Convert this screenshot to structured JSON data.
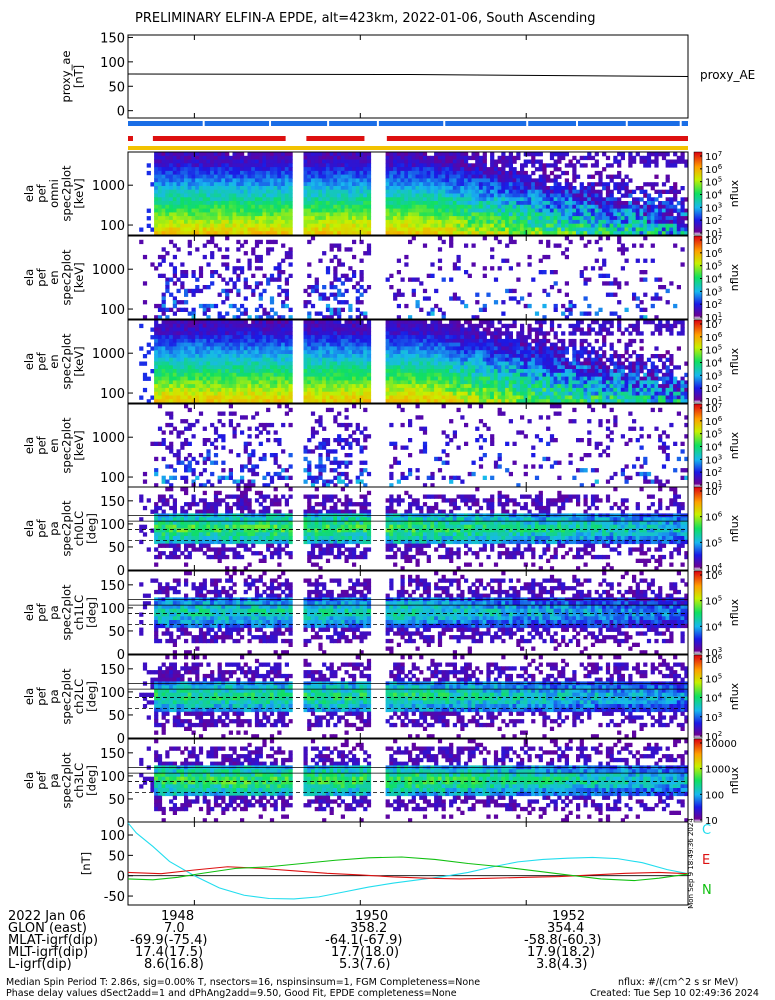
{
  "title": "PRELIMINARY ELFIN-A EPDE, alt=423km, 2022-01-06, South Ascending",
  "chart_data": [
    {
      "type": "line",
      "panel": "proxy_ae",
      "ylabel_lines": [
        "proxy_ae",
        "[nT]"
      ],
      "legend": "proxy_AE",
      "yticks": [
        "150",
        "100",
        "50",
        "0"
      ],
      "ylim": [
        -15,
        155
      ],
      "xlim": [
        1947.2,
        1953.95
      ],
      "series": [
        {
          "x": [
            1947.2,
            1950.6,
            1953.95
          ],
          "y": [
            75,
            74,
            70
          ]
        }
      ]
    },
    {
      "type": "heatmap",
      "panel": "omni_energy",
      "ylabel_lines": [
        "ela",
        "pef",
        "omni",
        "spec2plot",
        "[keV]"
      ],
      "yticks": [
        "1000",
        "100"
      ],
      "zlabel": "nflux",
      "zticks": [
        "10^7",
        "10^6",
        "10^5",
        "10^4",
        "10^3",
        "10^2",
        "10^1"
      ],
      "log_y": true,
      "ylim": [
        55,
        7000
      ]
    },
    {
      "type": "heatmap",
      "panel": "pa_energy_1",
      "ylabel_lines": [
        "ela",
        "pef",
        "en",
        "spec2plot",
        "[keV]"
      ],
      "yticks": [
        "1000",
        "100"
      ],
      "zlabel": "nflux",
      "zticks": [
        "10^7",
        "10^6",
        "10^5",
        "10^4",
        "10^3",
        "10^2",
        "10^1"
      ]
    },
    {
      "type": "heatmap",
      "panel": "pa_energy_2",
      "ylabel_lines": [
        "ela",
        "pef",
        "en",
        "spec2plot",
        "[keV]"
      ],
      "yticks": [
        "1000",
        "100"
      ],
      "zlabel": "nflux",
      "zticks": [
        "10^7",
        "10^6",
        "10^5",
        "10^4",
        "10^3",
        "10^2",
        "10^1"
      ]
    },
    {
      "type": "heatmap",
      "panel": "pa_energy_3",
      "ylabel_lines": [
        "ela",
        "pef",
        "en",
        "spec2plot",
        "[keV]"
      ],
      "yticks": [
        "1000",
        "100"
      ],
      "zlabel": "nflux",
      "zticks": [
        "10^7",
        "10^6",
        "10^5",
        "10^4",
        "10^3",
        "10^2",
        "10^1"
      ]
    },
    {
      "type": "heatmap",
      "panel": "ch0LC",
      "ylabel_lines": [
        "ela",
        "pef",
        "pa",
        "spec2plot",
        "ch0LC",
        "[deg]"
      ],
      "yticks": [
        "150",
        "100",
        "50",
        "0"
      ],
      "ylim": [
        0,
        180
      ],
      "zlabel": "nflux",
      "zticks": [
        "10^7",
        "10^6",
        "10^5",
        "10^4"
      ]
    },
    {
      "type": "heatmap",
      "panel": "ch1LC",
      "ylabel_lines": [
        "ela",
        "pef",
        "pa",
        "spec2plot",
        "ch1LC",
        "[deg]"
      ],
      "yticks": [
        "150",
        "100",
        "50",
        "0"
      ],
      "ylim": [
        0,
        180
      ],
      "zlabel": "nflux",
      "zticks": [
        "10^6",
        "10^5",
        "10^4",
        "10^3"
      ]
    },
    {
      "type": "heatmap",
      "panel": "ch2LC",
      "ylabel_lines": [
        "ela",
        "pef",
        "pa",
        "spec2plot",
        "ch2LC",
        "[deg]"
      ],
      "yticks": [
        "150",
        "100",
        "50",
        "0"
      ],
      "ylim": [
        0,
        180
      ],
      "zlabel": "nflux",
      "zticks": [
        "10^6",
        "10^5",
        "10^4",
        "10^3",
        "10^2"
      ]
    },
    {
      "type": "heatmap",
      "panel": "ch3LC",
      "ylabel_lines": [
        "ela",
        "pef",
        "pa",
        "spec2plot",
        "ch3LC",
        "[deg]"
      ],
      "yticks": [
        "150",
        "100",
        "50",
        "0"
      ],
      "ylim": [
        0,
        180
      ],
      "zlabel": "nflux",
      "zticks": [
        "10000",
        "1000",
        "100",
        "10"
      ]
    },
    {
      "type": "line",
      "panel": "magnetic_field",
      "ylabel_lines": [
        "[nT]"
      ],
      "yticks": [
        "100",
        "50",
        "0",
        "-50"
      ],
      "ylim": [
        -72,
        132
      ],
      "legend": [
        "C",
        "E",
        "N"
      ],
      "legend_colors": [
        "#22ddee",
        "#dd1010",
        "#10c010"
      ],
      "side_label": "Mon Sep  9 18:49:36 2024",
      "series": [
        {
          "name": "C",
          "x": [
            1947.2,
            1947.3,
            1947.5,
            1947.7,
            1948.0,
            1948.3,
            1948.6,
            1948.9,
            1949.2,
            1949.5,
            1949.8,
            1950.1,
            1950.4,
            1950.7,
            1951.0,
            1951.3,
            1951.6,
            1951.9,
            1952.2,
            1952.5,
            1952.8,
            1953.1,
            1953.4,
            1953.7,
            1953.95
          ],
          "y": [
            130,
            105,
            72,
            35,
            0,
            -30,
            -48,
            -56,
            -57,
            -52,
            -40,
            -28,
            -18,
            -10,
            -2,
            8,
            22,
            34,
            40,
            43,
            45,
            42,
            32,
            15,
            5
          ]
        },
        {
          "name": "E",
          "x": [
            1947.2,
            1947.6,
            1948.0,
            1948.4,
            1948.8,
            1949.2,
            1949.6,
            1950.0,
            1950.4,
            1950.8,
            1951.2,
            1951.6,
            1952.0,
            1952.4,
            1952.8,
            1953.2,
            1953.6,
            1953.95
          ],
          "y": [
            8,
            5,
            14,
            22,
            18,
            12,
            6,
            2,
            -3,
            -6,
            -8,
            -6,
            -4,
            -2,
            2,
            6,
            8,
            5
          ]
        },
        {
          "name": "N",
          "x": [
            1947.2,
            1947.5,
            1947.8,
            1948.1,
            1948.5,
            1948.9,
            1949.3,
            1949.7,
            1950.1,
            1950.5,
            1950.9,
            1951.3,
            1951.7,
            1952.1,
            1952.5,
            1952.9,
            1953.3,
            1953.6,
            1953.95
          ],
          "y": [
            -8,
            -10,
            -4,
            6,
            18,
            22,
            30,
            38,
            44,
            46,
            40,
            30,
            22,
            12,
            2,
            -8,
            -12,
            -6,
            4
          ]
        }
      ]
    }
  ],
  "xaxis": {
    "ticks": [
      "1948",
      "1950",
      "1952"
    ],
    "tick_values": [
      1948,
      1950,
      1952
    ],
    "xlim": [
      1947.2,
      1953.95
    ],
    "row_labels": [
      "2022 Jan 06",
      "GLON (east)",
      "MLAT-igrf(dip)",
      "MLT-igrf(dip)",
      "L-igrf(dip)"
    ],
    "rows": [
      [
        "1948",
        "1950",
        "1952"
      ],
      [
        "7.0",
        "358.2",
        "354.4"
      ],
      [
        "-69.9(-75.4)",
        "-64.1(-67.9)",
        "-58.8(-60.3)"
      ],
      [
        "17.4(17.5)",
        "17.7(18.0)",
        "17.9(18.2)"
      ],
      [
        "8.6(16.8)",
        "5.3(7.6)",
        "3.8(4.3)"
      ]
    ]
  },
  "footer": {
    "line1_left": "Median Spin Period T: 2.86s, sig=0.00% T, nsectors=16, nspinsinsum=1, FGM Completeness=None",
    "line2_left": "Phase delay values dSect2add=1 and dPhAng2add=9.50, Good Fit, EPDE completeness=None",
    "line1_right": "nflux: #/(cm^2 s sr MeV)",
    "line2_right": "Created: Tue Sep 10 02:49:36 2024"
  },
  "colors": {
    "bar_blue": "#1a6ee6",
    "bar_red": "#dd1010",
    "bar_yellow": "#f2c200",
    "C": "#22ddee",
    "E": "#dd1010",
    "N": "#10c010"
  }
}
